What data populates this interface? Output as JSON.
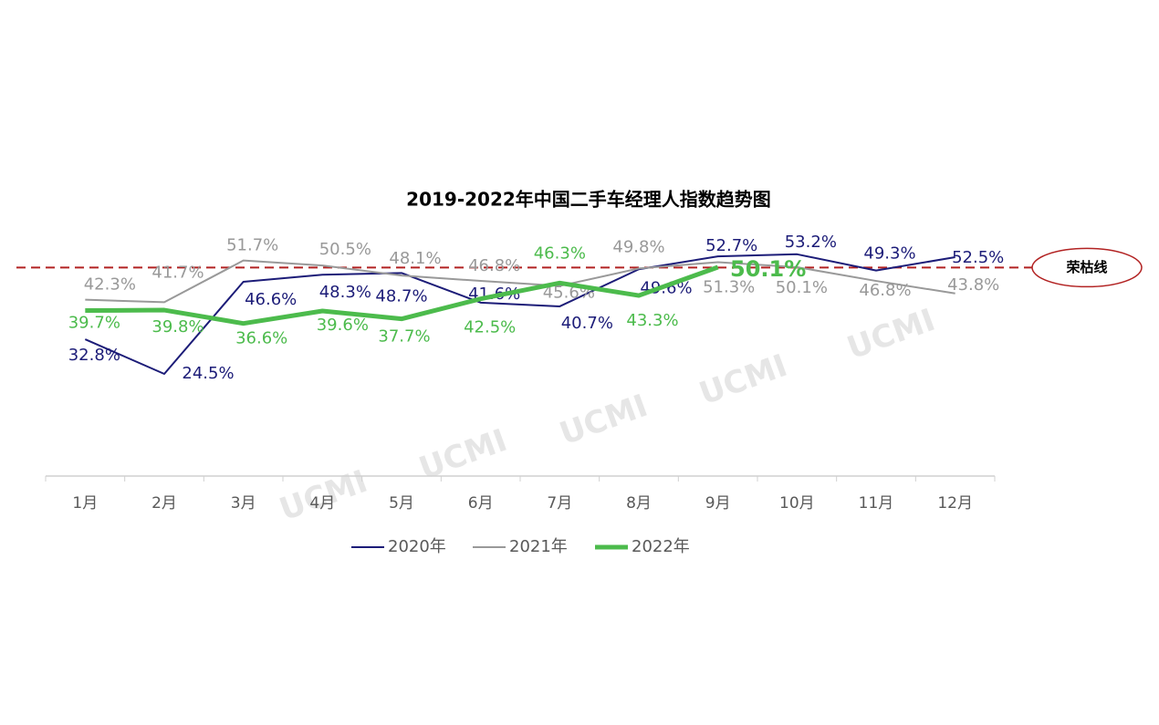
{
  "chart_data": {
    "type": "line",
    "title": "2019-2022年中国二手车经理人指数趋势图",
    "categories": [
      "1月",
      "2月",
      "3月",
      "4月",
      "5月",
      "6月",
      "7月",
      "8月",
      "9月",
      "10月",
      "11月",
      "12月"
    ],
    "series": [
      {
        "name": "2020年",
        "color": "#1c1c78",
        "values": [
          32.8,
          24.5,
          46.6,
          48.3,
          48.7,
          41.6,
          40.7,
          49.6,
          52.7,
          53.2,
          49.3,
          52.5
        ],
        "value_labels": [
          "32.8%",
          "24.5%",
          "46.6%",
          "48.3%",
          "48.7%",
          "41.6%",
          "40.7%",
          "49.6%",
          "52.7%",
          "53.2%",
          "49.3%",
          "52.5%"
        ]
      },
      {
        "name": "2021年",
        "color": "#999999",
        "values": [
          42.3,
          41.7,
          51.7,
          50.5,
          48.1,
          46.8,
          45.6,
          49.8,
          51.3,
          50.1,
          46.8,
          43.8
        ],
        "value_labels": [
          "42.3%",
          "41.7%",
          "51.7%",
          "50.5%",
          "48.1%",
          "46.8%",
          "45.6%",
          "49.8%",
          "51.3%",
          "50.1%",
          "46.8%",
          "43.8%"
        ]
      },
      {
        "name": "2022年",
        "color": "#4cbb4c",
        "values": [
          39.7,
          39.8,
          36.6,
          39.6,
          37.7,
          42.5,
          46.3,
          43.3,
          50.1,
          null,
          null,
          null
        ],
        "value_labels": [
          "39.7%",
          "39.8%",
          "36.6%",
          "39.6%",
          "37.7%",
          "42.5%",
          "46.3%",
          "43.3%",
          "50.1%",
          null,
          null,
          null
        ]
      }
    ],
    "ylim": [
      0,
      56
    ],
    "reference_line": {
      "value": 50,
      "label": "荣枯线",
      "color": "#b22222"
    },
    "watermark": "UCMI",
    "legend": "bottom"
  }
}
